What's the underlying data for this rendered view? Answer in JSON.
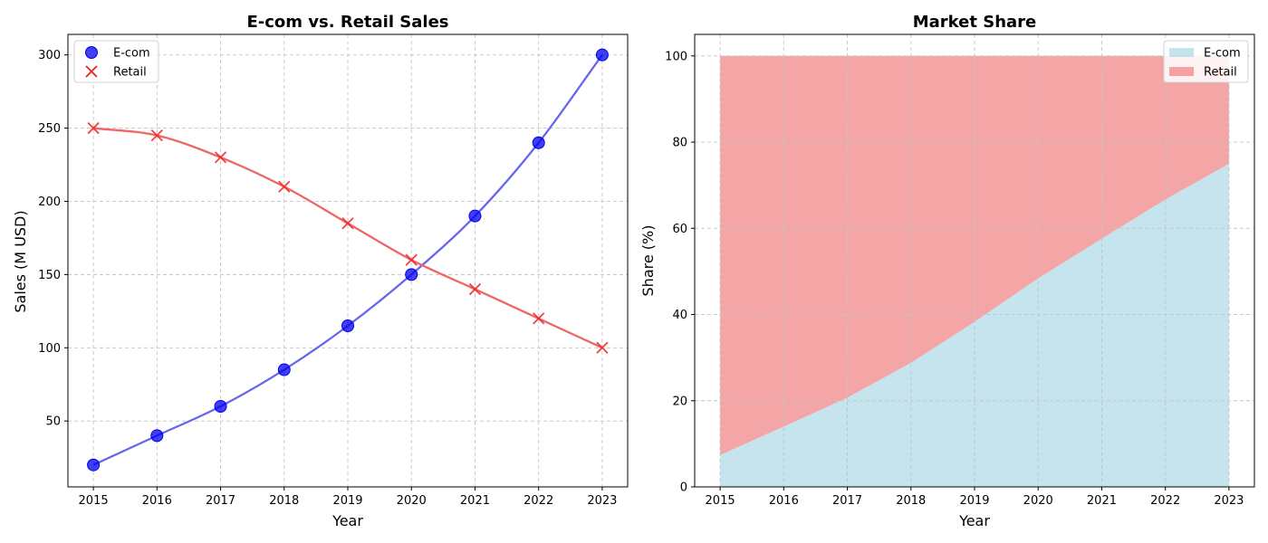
{
  "chart_data": [
    {
      "type": "scatter",
      "title": "E-com vs. Retail Sales",
      "xlabel": "Year",
      "ylabel": "Sales (M USD)",
      "xlim": [
        2014.6,
        2023.4
      ],
      "ylim": [
        5,
        314
      ],
      "x_ticks": [
        2015,
        2016,
        2017,
        2018,
        2019,
        2020,
        2021,
        2022,
        2023
      ],
      "y_ticks": [
        50,
        100,
        150,
        200,
        250,
        300
      ],
      "grid": true,
      "legend_position": "top-left",
      "x": [
        2015,
        2016,
        2017,
        2018,
        2019,
        2020,
        2021,
        2022,
        2023
      ],
      "series": [
        {
          "name": "E-com",
          "values": [
            20,
            40,
            60,
            85,
            115,
            150,
            190,
            240,
            300
          ],
          "marker": "circle",
          "color": "#0000ee",
          "line_color": "#6666ee"
        },
        {
          "name": "Retail",
          "values": [
            250,
            245,
            230,
            210,
            185,
            160,
            140,
            120,
            100
          ],
          "marker": "x",
          "color": "#ee2222",
          "line_color": "#ee6666"
        }
      ]
    },
    {
      "type": "area",
      "stacked": true,
      "title": "Market Share",
      "xlabel": "Year",
      "ylabel": "Share (%)",
      "xlim": [
        2014.6,
        2023.4
      ],
      "ylim": [
        0,
        105
      ],
      "x_ticks": [
        2015,
        2016,
        2017,
        2018,
        2019,
        2020,
        2021,
        2022,
        2023
      ],
      "y_ticks": [
        0,
        20,
        40,
        60,
        80,
        100
      ],
      "grid": true,
      "legend_position": "top-right",
      "x": [
        2015,
        2016,
        2017,
        2018,
        2019,
        2020,
        2021,
        2022,
        2023
      ],
      "series": [
        {
          "name": "E-com",
          "values": [
            7.4,
            14.0,
            20.7,
            28.8,
            38.3,
            48.4,
            57.6,
            66.7,
            75.0
          ],
          "color": "#add8e6"
        },
        {
          "name": "Retail",
          "values": [
            92.6,
            86.0,
            79.3,
            71.2,
            61.7,
            51.6,
            42.4,
            33.3,
            25.0
          ],
          "color": "#f08080"
        }
      ]
    }
  ]
}
